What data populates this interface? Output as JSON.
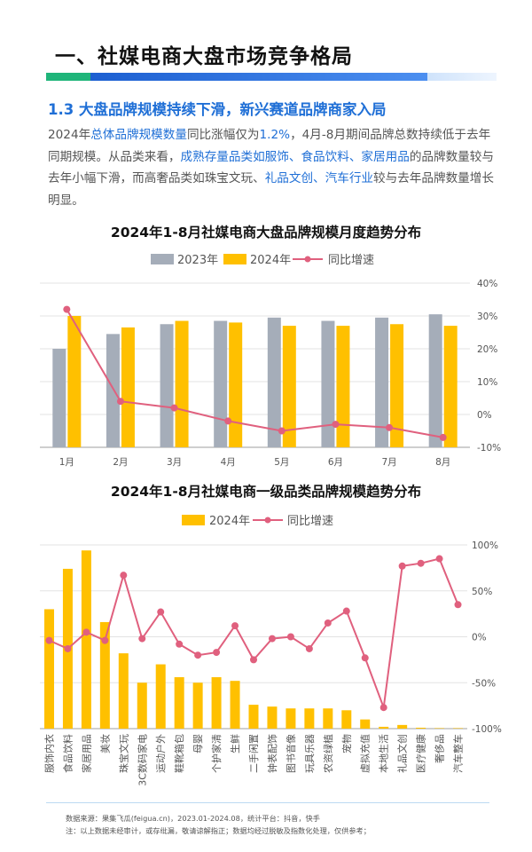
{
  "header": {
    "title": "一、社媒电商大盘市场竞争格局",
    "section": "1.3 大盘品牌规模持续下滑，新兴赛道品牌商家入局"
  },
  "paragraph": [
    {
      "t": "2024年",
      "hl": false
    },
    {
      "t": "总体品牌规模数量",
      "hl": true
    },
    {
      "t": "同比涨幅仅为",
      "hl": false
    },
    {
      "t": "1.2%",
      "hl": true
    },
    {
      "t": "，4月-8月期间品牌总数持续低于去年同期规模。从品类来看，",
      "hl": false
    },
    {
      "t": "成熟存量品类如服饰、食品饮料、家居用品",
      "hl": true
    },
    {
      "t": "的品牌数量较与去年小幅下滑，而高奢品类如珠宝文玩、",
      "hl": false
    },
    {
      "t": "礼品文创、汽车行业",
      "hl": true
    },
    {
      "t": "较与去年品牌数量增长明显。",
      "hl": false
    }
  ],
  "chart_data": [
    {
      "type": "bar",
      "title": "2024年1-8月社媒电商大盘品牌规模月度趋势分布",
      "categories": [
        "1月",
        "2月",
        "3月",
        "4月",
        "5月",
        "6月",
        "7月",
        "8月"
      ],
      "series": [
        {
          "name": "2023年",
          "type": "bar",
          "color": "#a5adb9",
          "values": [
            0.6,
            0.69,
            0.75,
            0.77,
            0.79,
            0.77,
            0.79,
            0.81
          ]
        },
        {
          "name": "2024年",
          "type": "bar",
          "color": "#ffc000",
          "values": [
            0.8,
            0.73,
            0.77,
            0.76,
            0.74,
            0.74,
            0.75,
            0.74
          ]
        },
        {
          "name": "同比增速",
          "type": "line",
          "color": "#e0607e",
          "axis": "right",
          "values": [
            32,
            4,
            2,
            -2,
            -5,
            -3,
            -4,
            -7
          ]
        }
      ],
      "yright": {
        "ticks": [
          "40%",
          "30%",
          "20%",
          "10%",
          "0%",
          "-10%"
        ],
        "lim": [
          -10,
          40
        ]
      },
      "ylim_left": [
        0,
        1.0
      ]
    },
    {
      "type": "bar",
      "title": "2024年1-8月社媒电商一级品类品牌规模趋势分布",
      "categories": [
        "服饰内衣",
        "食品饮料",
        "家居用品",
        "美妆",
        "珠宝文玩",
        "3C数码家电",
        "运动户外",
        "鞋靴箱包",
        "母婴",
        "个护家清",
        "生鲜",
        "二手闲置",
        "钟表配饰",
        "图书音像",
        "玩具乐器",
        "农资绿植",
        "宠物",
        "虚拟充值",
        "本地生活",
        "礼品文创",
        "医疗健康",
        "奢侈品",
        "汽车整车"
      ],
      "series": [
        {
          "name": "2024年",
          "type": "bar",
          "color": "#ffc000",
          "values": [
            0.65,
            0.87,
            0.97,
            0.58,
            0.41,
            0.25,
            0.35,
            0.28,
            0.25,
            0.28,
            0.26,
            0.13,
            0.12,
            0.11,
            0.11,
            0.11,
            0.1,
            0.05,
            0.01,
            0.02,
            0.005,
            0.002,
            0.001
          ]
        },
        {
          "name": "同比增速",
          "type": "line",
          "color": "#e0607e",
          "axis": "right",
          "values": [
            -4,
            -13,
            5,
            -4,
            67,
            -2,
            27,
            -8,
            -20,
            -17,
            12,
            -25,
            -2,
            0,
            -13,
            15,
            28,
            -23,
            -77,
            77,
            80,
            85,
            35
          ]
        }
      ],
      "yright": {
        "ticks": [
          "100%",
          "50%",
          "0%",
          "-50%",
          "-100%"
        ],
        "lim": [
          -100,
          100
        ]
      },
      "ylim_left": [
        0,
        1.0
      ]
    }
  ],
  "footer": {
    "line1": "数据来源：果集飞瓜(feigua.cn)，2023.01-2024.08，统计平台：抖音，快手",
    "line2": "注：以上数据未经审计，或存纰漏，敬请谅解指正；数据均经过脱敏及指数化处理，仅供参考；"
  }
}
